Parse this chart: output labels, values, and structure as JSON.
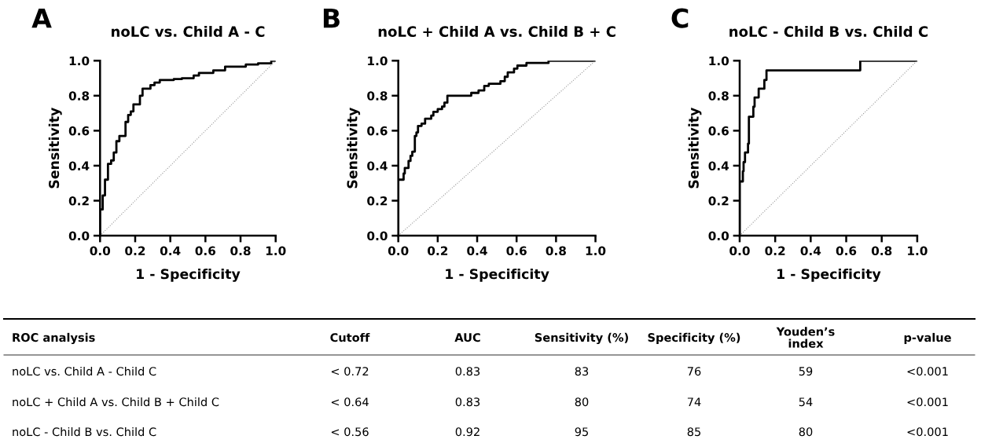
{
  "chart_data": [
    {
      "type": "step",
      "title": "noLC vs. Child A - C",
      "annotations": [
        "A"
      ],
      "xlabel": "1 - Specificity",
      "ylabel": "Sensitivity",
      "xlim": [
        0,
        1
      ],
      "ylim": [
        0,
        1
      ],
      "xticks": [
        {
          "value": 0,
          "label": "0.0"
        },
        {
          "value": 0.2,
          "label": "0.2"
        },
        {
          "value": 0.4,
          "label": "0.4"
        },
        {
          "value": 0.6,
          "label": "0.6"
        },
        {
          "value": 0.8,
          "label": "0.8"
        },
        {
          "value": 1,
          "label": "1.0"
        }
      ],
      "yticks": [
        {
          "value": 0,
          "label": "0.0"
        },
        {
          "value": 0.2,
          "label": "0.2"
        },
        {
          "value": 0.4,
          "label": "0.4"
        },
        {
          "value": 0.6,
          "label": "0.6"
        },
        {
          "value": 0.8,
          "label": "0.8"
        },
        {
          "value": 1,
          "label": "1.0"
        }
      ],
      "series": [
        {
          "color": "#000000",
          "x": [
            0,
            0,
            0.015,
            0.028,
            0.045,
            0.063,
            0.078,
            0.093,
            0.11,
            0.145,
            0.16,
            0.175,
            0.19,
            0.227,
            0.242,
            0.287,
            0.31,
            0.34,
            0.42,
            0.466,
            0.533,
            0.563,
            0.645,
            0.712,
            0.83,
            0.9,
            0.975,
            1
          ],
          "values": [
            0,
            0.15,
            0.23,
            0.32,
            0.41,
            0.43,
            0.475,
            0.54,
            0.57,
            0.65,
            0.69,
            0.71,
            0.75,
            0.8,
            0.84,
            0.86,
            0.875,
            0.89,
            0.895,
            0.9,
            0.915,
            0.93,
            0.945,
            0.966,
            0.978,
            0.985,
            1,
            1
          ]
        },
        {
          "type": "line",
          "color": "#999999",
          "line_style": "dotted",
          "x": [
            0,
            1
          ],
          "values": [
            0,
            1
          ]
        }
      ]
    },
    {
      "type": "step",
      "title": "noLC + Child A vs. Child B + C",
      "annotations": [
        "B"
      ],
      "xlabel": "1 - Specificity",
      "ylabel": "Sensitivity",
      "xlim": [
        0,
        1
      ],
      "ylim": [
        0,
        1
      ],
      "xticks": [
        {
          "value": 0,
          "label": "0.0"
        },
        {
          "value": 0.2,
          "label": "0.2"
        },
        {
          "value": 0.4,
          "label": "0.4"
        },
        {
          "value": 0.6,
          "label": "0.6"
        },
        {
          "value": 0.8,
          "label": "0.8"
        },
        {
          "value": 1,
          "label": "1.0"
        }
      ],
      "yticks": [
        {
          "value": 0,
          "label": "0.0"
        },
        {
          "value": 0.2,
          "label": "0.2"
        },
        {
          "value": 0.4,
          "label": "0.4"
        },
        {
          "value": 0.6,
          "label": "0.6"
        },
        {
          "value": 0.8,
          "label": "0.8"
        },
        {
          "value": 1,
          "label": "1.0"
        }
      ],
      "series": [
        {
          "color": "#000000",
          "x": [
            0,
            0,
            0.027,
            0.033,
            0.052,
            0.062,
            0.071,
            0.084,
            0.092,
            0.1,
            0.118,
            0.136,
            0.167,
            0.178,
            0.2,
            0.222,
            0.234,
            0.249,
            0.37,
            0.407,
            0.436,
            0.459,
            0.518,
            0.54,
            0.555,
            0.587,
            0.604,
            0.65,
            0.762,
            1
          ],
          "values": [
            0,
            0.32,
            0.355,
            0.387,
            0.427,
            0.456,
            0.48,
            0.57,
            0.59,
            0.627,
            0.64,
            0.668,
            0.686,
            0.708,
            0.723,
            0.738,
            0.76,
            0.8,
            0.816,
            0.83,
            0.856,
            0.868,
            0.883,
            0.908,
            0.933,
            0.955,
            0.972,
            0.987,
            1,
            1
          ]
        },
        {
          "type": "line",
          "color": "#999999",
          "line_style": "dotted",
          "x": [
            0,
            1
          ],
          "values": [
            0,
            1
          ]
        }
      ]
    },
    {
      "type": "step",
      "title": "noLC - Child B vs. Child C",
      "annotations": [
        "C"
      ],
      "xlabel": "1 - Specificity",
      "ylabel": "Sensitivity",
      "xlim": [
        0,
        1
      ],
      "ylim": [
        0,
        1
      ],
      "xticks": [
        {
          "value": 0,
          "label": "0.0"
        },
        {
          "value": 0.2,
          "label": "0.2"
        },
        {
          "value": 0.4,
          "label": "0.4"
        },
        {
          "value": 0.6,
          "label": "0.6"
        },
        {
          "value": 0.8,
          "label": "0.8"
        },
        {
          "value": 1,
          "label": "1.0"
        }
      ],
      "yticks": [
        {
          "value": 0,
          "label": "0.0"
        },
        {
          "value": 0.2,
          "label": "0.2"
        },
        {
          "value": 0.4,
          "label": "0.4"
        },
        {
          "value": 0.6,
          "label": "0.6"
        },
        {
          "value": 0.8,
          "label": "0.8"
        },
        {
          "value": 1,
          "label": "1.0"
        }
      ],
      "series": [
        {
          "color": "#000000",
          "x": [
            0,
            0,
            0.018,
            0.022,
            0.03,
            0.047,
            0.052,
            0.077,
            0.084,
            0.107,
            0.139,
            0.151,
            0.679,
            1
          ],
          "values": [
            0,
            0.31,
            0.368,
            0.42,
            0.475,
            0.526,
            0.68,
            0.737,
            0.79,
            0.84,
            0.89,
            0.945,
            1,
            1
          ]
        },
        {
          "type": "line",
          "color": "#999999",
          "line_style": "dotted",
          "x": [
            0,
            1
          ],
          "values": [
            0,
            1
          ]
        }
      ]
    },
    {
      "type": "other",
      "categories": [
        "ROC analysis",
        "Cutoff",
        "AUC",
        "Sensitivity (%)",
        "Specificity (%)",
        "Youden’s\nindex",
        "p-value"
      ],
      "y_categories": [
        "noLC vs. Child A - Child C",
        "noLC + Child A vs. Child B + Child C",
        "noLC - Child B vs. Child C"
      ],
      "cell_labels": [
        [
          "< 0.72",
          "0.83",
          "83",
          "76",
          "59",
          "<0.001"
        ],
        [
          "< 0.64",
          "0.83",
          "80",
          "74",
          "54",
          "<0.001"
        ],
        [
          "< 0.56",
          "0.92",
          "95",
          "85",
          "80",
          "<0.001"
        ]
      ]
    }
  ]
}
